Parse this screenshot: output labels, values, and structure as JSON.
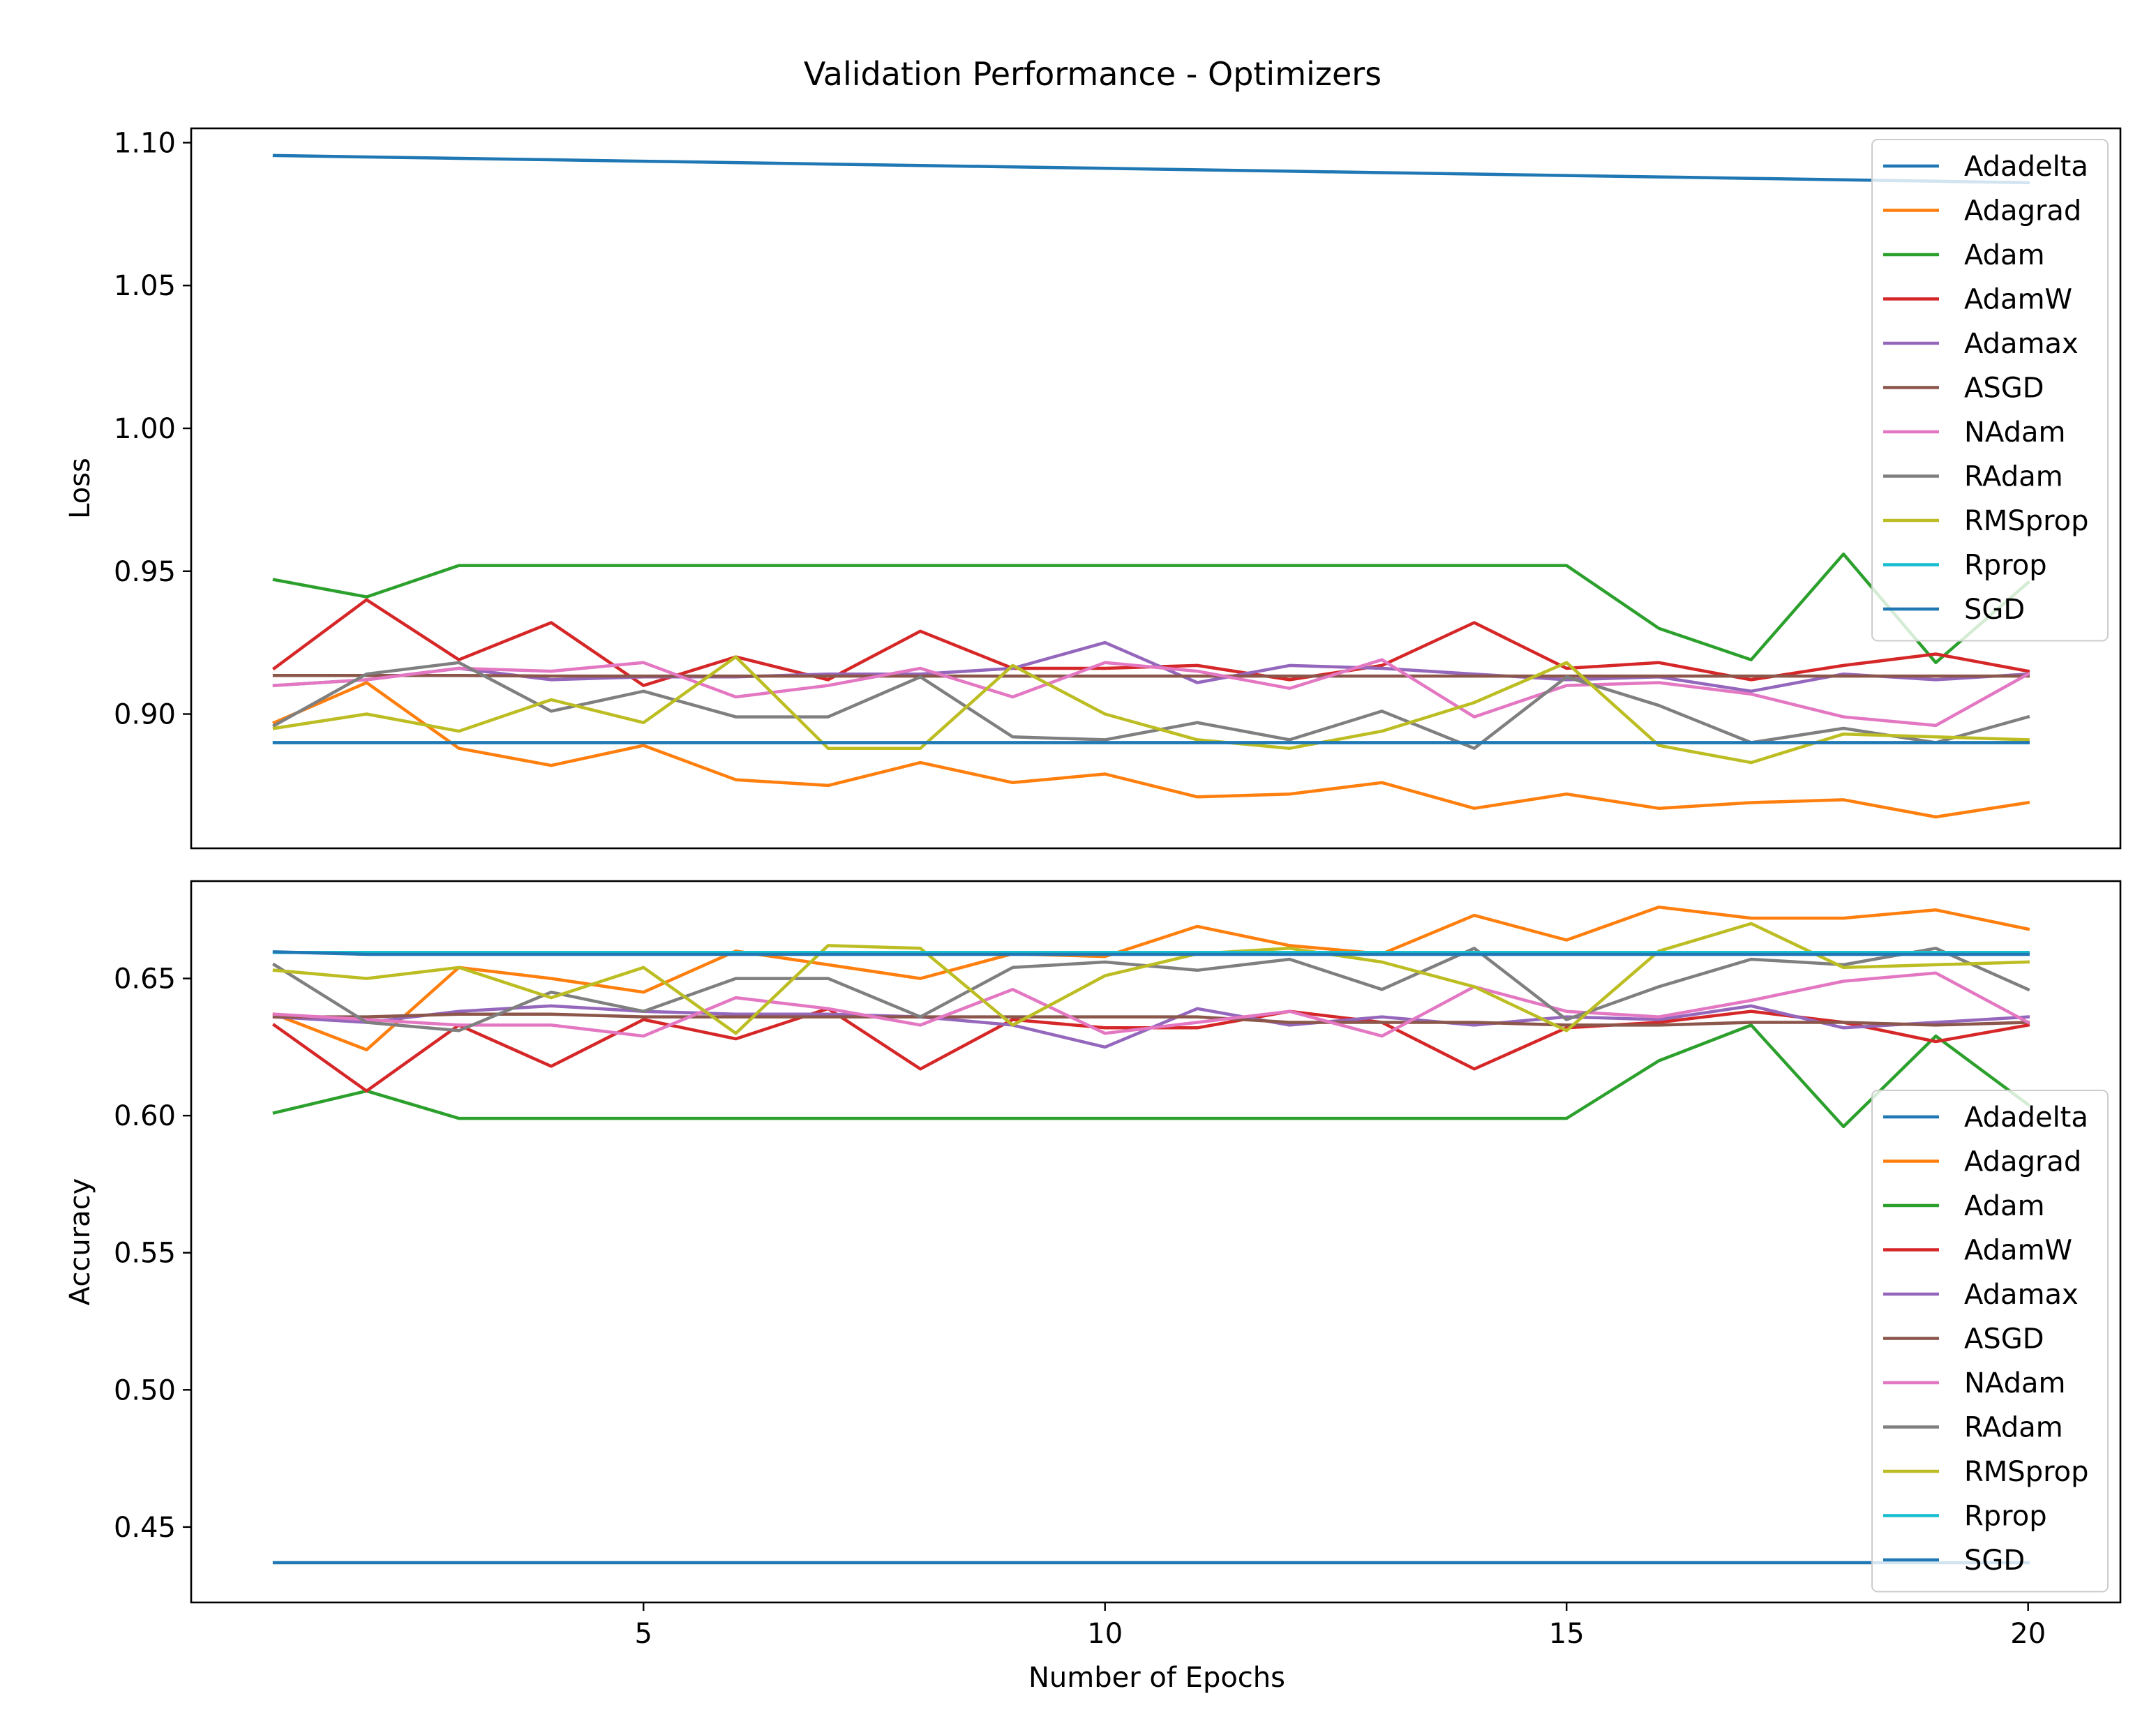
{
  "figure": {
    "title": "Validation Performance - Optimizers"
  },
  "colors": {
    "Adadelta": "#1f77b4",
    "Adagrad": "#ff7f0e",
    "Adam": "#2ca02c",
    "AdamW": "#d62728",
    "Adamax": "#9467bd",
    "ASGD": "#8c564b",
    "NAdam": "#e377c2",
    "RAdam": "#7f7f7f",
    "RMSprop": "#bcbd22",
    "Rprop": "#17becf",
    "SGD": "#1f77b4"
  },
  "chart_data": [
    {
      "type": "line",
      "title": "Validation Performance - Optimizers",
      "xlabel": "",
      "ylabel": "Loss",
      "x": [
        1,
        2,
        3,
        4,
        5,
        6,
        7,
        8,
        9,
        10,
        11,
        12,
        13,
        14,
        15,
        16,
        17,
        18,
        19,
        20
      ],
      "xlim": [
        0.1,
        21.0
      ],
      "ylim": [
        0.853,
        1.105
      ],
      "xticks": [
        5,
        10,
        15,
        20
      ],
      "yticks": [
        0.9,
        0.95,
        1.0,
        1.05,
        1.1
      ],
      "ytick_labels": [
        "0.90",
        "0.95",
        "1.00",
        "1.05",
        "1.10"
      ],
      "grid": false,
      "legend": "top-right",
      "series": [
        {
          "name": "Adadelta",
          "values": [
            1.0955,
            1.095,
            1.0945,
            1.094,
            1.0935,
            1.093,
            1.0925,
            1.092,
            1.0915,
            1.091,
            1.0905,
            1.09,
            1.0895,
            1.089,
            1.0885,
            1.088,
            1.0875,
            1.087,
            1.0865,
            1.086
          ]
        },
        {
          "name": "Adagrad",
          "values": [
            0.897,
            0.911,
            0.888,
            0.882,
            0.889,
            0.877,
            0.875,
            0.883,
            0.876,
            0.879,
            0.871,
            0.872,
            0.876,
            0.867,
            0.872,
            0.867,
            0.869,
            0.87,
            0.864,
            0.869
          ]
        },
        {
          "name": "Adam",
          "values": [
            0.947,
            0.941,
            0.952,
            0.952,
            0.952,
            0.952,
            0.952,
            0.952,
            0.952,
            0.952,
            0.952,
            0.952,
            0.952,
            0.952,
            0.952,
            0.93,
            0.919,
            0.956,
            0.918,
            0.946
          ]
        },
        {
          "name": "AdamW",
          "values": [
            0.916,
            0.94,
            0.919,
            0.932,
            0.91,
            0.92,
            0.912,
            0.929,
            0.916,
            0.916,
            0.917,
            0.912,
            0.917,
            0.932,
            0.916,
            0.918,
            0.912,
            0.917,
            0.921,
            0.915
          ]
        },
        {
          "name": "Adamax",
          "values": [
            0.91,
            0.912,
            0.916,
            0.912,
            0.913,
            0.913,
            0.914,
            0.914,
            0.916,
            0.925,
            0.911,
            0.917,
            0.916,
            0.914,
            0.912,
            0.913,
            0.908,
            0.914,
            0.912,
            0.914
          ]
        },
        {
          "name": "ASGD",
          "values": [
            0.9135,
            0.9135,
            0.9135,
            0.9133,
            0.9133,
            0.9133,
            0.9133,
            0.9133,
            0.9133,
            0.9133,
            0.9133,
            0.9133,
            0.9133,
            0.9133,
            0.9133,
            0.9133,
            0.9133,
            0.9133,
            0.9133,
            0.9133
          ]
        },
        {
          "name": "NAdam",
          "values": [
            0.91,
            0.912,
            0.916,
            0.915,
            0.918,
            0.906,
            0.91,
            0.916,
            0.906,
            0.918,
            0.915,
            0.909,
            0.919,
            0.899,
            0.91,
            0.911,
            0.907,
            0.899,
            0.896,
            0.914
          ]
        },
        {
          "name": "RAdam",
          "values": [
            0.896,
            0.914,
            0.918,
            0.901,
            0.908,
            0.899,
            0.899,
            0.913,
            0.892,
            0.891,
            0.897,
            0.891,
            0.901,
            0.888,
            0.913,
            0.903,
            0.89,
            0.895,
            0.89,
            0.899
          ]
        },
        {
          "name": "RMSprop",
          "values": [
            0.895,
            0.9,
            0.894,
            0.905,
            0.897,
            0.92,
            0.888,
            0.888,
            0.917,
            0.9,
            0.891,
            0.888,
            0.894,
            0.904,
            0.918,
            0.889,
            0.883,
            0.893,
            0.892,
            0.891
          ]
        },
        {
          "name": "Rprop",
          "values": [
            0.89,
            0.89,
            0.89,
            0.89,
            0.89,
            0.89,
            0.89,
            0.89,
            0.89,
            0.89,
            0.89,
            0.89,
            0.89,
            0.89,
            0.89,
            0.89,
            0.89,
            0.89,
            0.89,
            0.89
          ]
        },
        {
          "name": "SGD",
          "values": [
            0.89,
            0.89,
            0.89,
            0.89,
            0.89,
            0.89,
            0.89,
            0.89,
            0.89,
            0.89,
            0.89,
            0.89,
            0.89,
            0.89,
            0.89,
            0.89,
            0.89,
            0.89,
            0.89,
            0.89
          ]
        }
      ]
    },
    {
      "type": "line",
      "xlabel": "Number of Epochs",
      "ylabel": "Accuracy",
      "x": [
        1,
        2,
        3,
        4,
        5,
        6,
        7,
        8,
        9,
        10,
        11,
        12,
        13,
        14,
        15,
        16,
        17,
        18,
        19,
        20
      ],
      "xlim": [
        0.1,
        21.0
      ],
      "ylim": [
        0.4225,
        0.6855
      ],
      "xticks": [
        5,
        10,
        15,
        20
      ],
      "xtick_labels": [
        "5",
        "10",
        "15",
        "20"
      ],
      "yticks": [
        0.45,
        0.5,
        0.55,
        0.6,
        0.65
      ],
      "ytick_labels": [
        "0.45",
        "0.50",
        "0.55",
        "0.60",
        "0.65"
      ],
      "grid": false,
      "legend": "lower-right",
      "series": [
        {
          "name": "Adadelta",
          "values": [
            0.437,
            0.437,
            0.437,
            0.437,
            0.437,
            0.437,
            0.437,
            0.437,
            0.437,
            0.437,
            0.437,
            0.437,
            0.437,
            0.437,
            0.437,
            0.437,
            0.437,
            0.437,
            0.437,
            0.437
          ]
        },
        {
          "name": "Adagrad",
          "values": [
            0.637,
            0.624,
            0.654,
            0.65,
            0.645,
            0.66,
            0.655,
            0.65,
            0.659,
            0.658,
            0.669,
            0.662,
            0.659,
            0.673,
            0.664,
            0.676,
            0.672,
            0.672,
            0.675,
            0.668
          ]
        },
        {
          "name": "Adam",
          "values": [
            0.601,
            0.609,
            0.599,
            0.599,
            0.599,
            0.599,
            0.599,
            0.599,
            0.599,
            0.599,
            0.599,
            0.599,
            0.599,
            0.599,
            0.599,
            0.62,
            0.633,
            0.596,
            0.629,
            0.604
          ]
        },
        {
          "name": "AdamW",
          "values": [
            0.633,
            0.609,
            0.633,
            0.618,
            0.635,
            0.628,
            0.639,
            0.617,
            0.635,
            0.632,
            0.632,
            0.638,
            0.634,
            0.617,
            0.632,
            0.634,
            0.638,
            0.634,
            0.627,
            0.633
          ]
        },
        {
          "name": "Adamax",
          "values": [
            0.636,
            0.634,
            0.638,
            0.64,
            0.638,
            0.637,
            0.637,
            0.636,
            0.633,
            0.625,
            0.639,
            0.633,
            0.636,
            0.633,
            0.636,
            0.635,
            0.64,
            0.632,
            0.634,
            0.636
          ]
        },
        {
          "name": "ASGD",
          "values": [
            0.636,
            0.636,
            0.637,
            0.637,
            0.636,
            0.636,
            0.636,
            0.636,
            0.636,
            0.636,
            0.636,
            0.634,
            0.634,
            0.634,
            0.633,
            0.633,
            0.634,
            0.634,
            0.633,
            0.634
          ]
        },
        {
          "name": "NAdam",
          "values": [
            0.637,
            0.635,
            0.633,
            0.633,
            0.629,
            0.643,
            0.639,
            0.633,
            0.646,
            0.63,
            0.634,
            0.638,
            0.629,
            0.647,
            0.638,
            0.636,
            0.642,
            0.649,
            0.652,
            0.634
          ]
        },
        {
          "name": "RAdam",
          "values": [
            0.655,
            0.634,
            0.631,
            0.645,
            0.638,
            0.65,
            0.65,
            0.636,
            0.654,
            0.656,
            0.653,
            0.657,
            0.646,
            0.661,
            0.635,
            0.647,
            0.657,
            0.655,
            0.661,
            0.646
          ]
        },
        {
          "name": "RMSprop",
          "values": [
            0.653,
            0.65,
            0.654,
            0.643,
            0.654,
            0.63,
            0.662,
            0.661,
            0.633,
            0.651,
            0.659,
            0.661,
            0.656,
            0.647,
            0.631,
            0.66,
            0.67,
            0.654,
            0.655,
            0.656
          ]
        },
        {
          "name": "Rprop",
          "values": [
            0.6595,
            0.6595,
            0.6595,
            0.6595,
            0.6595,
            0.6595,
            0.6595,
            0.6595,
            0.6595,
            0.6595,
            0.6595,
            0.6595,
            0.6595,
            0.6595,
            0.6595,
            0.6595,
            0.6595,
            0.6595,
            0.6595,
            0.6595
          ]
        },
        {
          "name": "SGD",
          "values": [
            0.6597,
            0.6588,
            0.6588,
            0.6588,
            0.6588,
            0.6588,
            0.6588,
            0.6588,
            0.6588,
            0.6588,
            0.6588,
            0.6588,
            0.6588,
            0.6588,
            0.6588,
            0.6588,
            0.6588,
            0.6588,
            0.6588,
            0.6588
          ]
        }
      ]
    }
  ]
}
